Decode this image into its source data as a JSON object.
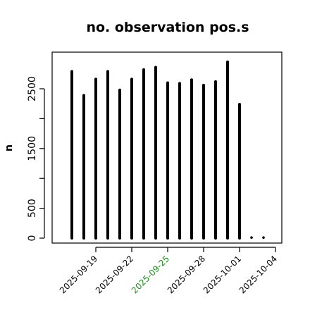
{
  "chart_data": {
    "type": "bar",
    "title": "no. observation pos.s",
    "ylabel": "n",
    "xlabel": "",
    "ylim": [
      0,
      3050
    ],
    "yticks": [
      0,
      500,
      1500,
      2500
    ],
    "yminor_ticks": [
      1000,
      2000
    ],
    "x": [
      "2025-09-17",
      "2025-09-18",
      "2025-09-19",
      "2025-09-20",
      "2025-09-21",
      "2025-09-22",
      "2025-09-23",
      "2025-09-24",
      "2025-09-25",
      "2025-09-26",
      "2025-09-27",
      "2025-09-28",
      "2025-09-29",
      "2025-09-30",
      "2025-10-01",
      "2025-10-02",
      "2025-10-03",
      "2025-10-04"
    ],
    "values": [
      2790,
      2390,
      2660,
      2790,
      2480,
      2660,
      2820,
      2860,
      2600,
      2590,
      2650,
      2560,
      2620,
      2950,
      2240,
      10,
      10,
      null
    ],
    "xtick_labels": [
      "2025-09-19",
      "2025-09-22",
      "2025-09-25",
      "2025-09-28",
      "2025-10-01",
      "2025-10-04"
    ],
    "highlight_tick": "2025-09-25",
    "colors": {
      "bar": "#000000",
      "highlight_tick": "#228B22",
      "tick": "#000000"
    },
    "grid": false,
    "legend": "none"
  }
}
